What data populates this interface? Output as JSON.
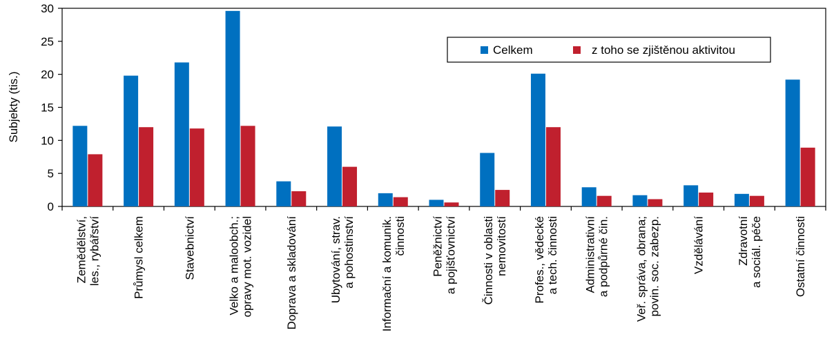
{
  "chart_data": {
    "type": "bar",
    "title": "",
    "xlabel": "",
    "ylabel": "Subjekty (tis.)",
    "ylim": [
      0,
      30
    ],
    "yticks": [
      "0",
      "5",
      "10",
      "15",
      "20",
      "25",
      "30"
    ],
    "grid": false,
    "legend_position": "top-right",
    "categories": [
      [
        "Zemědělství,",
        "les., rybářství"
      ],
      [
        "Průmysl celkem"
      ],
      [
        "Stavebnictví"
      ],
      [
        "Velko a maloobch.;",
        "opravy mot. vozidel"
      ],
      [
        "Doprava a skladování"
      ],
      [
        "Ubytování, strav.",
        "a pohostinství"
      ],
      [
        "Informační a komunik.",
        "činnosti"
      ],
      [
        "Peněžnictví",
        "a pojišťovnictví"
      ],
      [
        "Činnosti v oblasti",
        "nemovitostí"
      ],
      [
        "Profes., vědecké",
        "a tech. činnosti"
      ],
      [
        "Administrativní",
        "a podpůrné čin."
      ],
      [
        "Veř. správa, obrana;",
        "povin. soc. zabezp."
      ],
      [
        "Vzdělávání"
      ],
      [
        "Zdravotní",
        "a sociál. péče"
      ],
      [
        "Ostatní činnosti"
      ]
    ],
    "series": [
      {
        "name": "Celkem",
        "color": "#0070C0",
        "values": [
          12.2,
          19.8,
          21.8,
          29.6,
          3.8,
          12.1,
          2.0,
          1.0,
          8.1,
          20.1,
          2.9,
          1.7,
          3.2,
          1.9,
          19.2
        ]
      },
      {
        "name": "z toho se zjištěnou aktivitou",
        "color": "#C0202E",
        "values": [
          7.9,
          12.0,
          11.8,
          12.2,
          2.3,
          6.0,
          1.4,
          0.6,
          2.5,
          12.0,
          1.6,
          1.1,
          2.1,
          1.6,
          8.9
        ]
      }
    ]
  }
}
